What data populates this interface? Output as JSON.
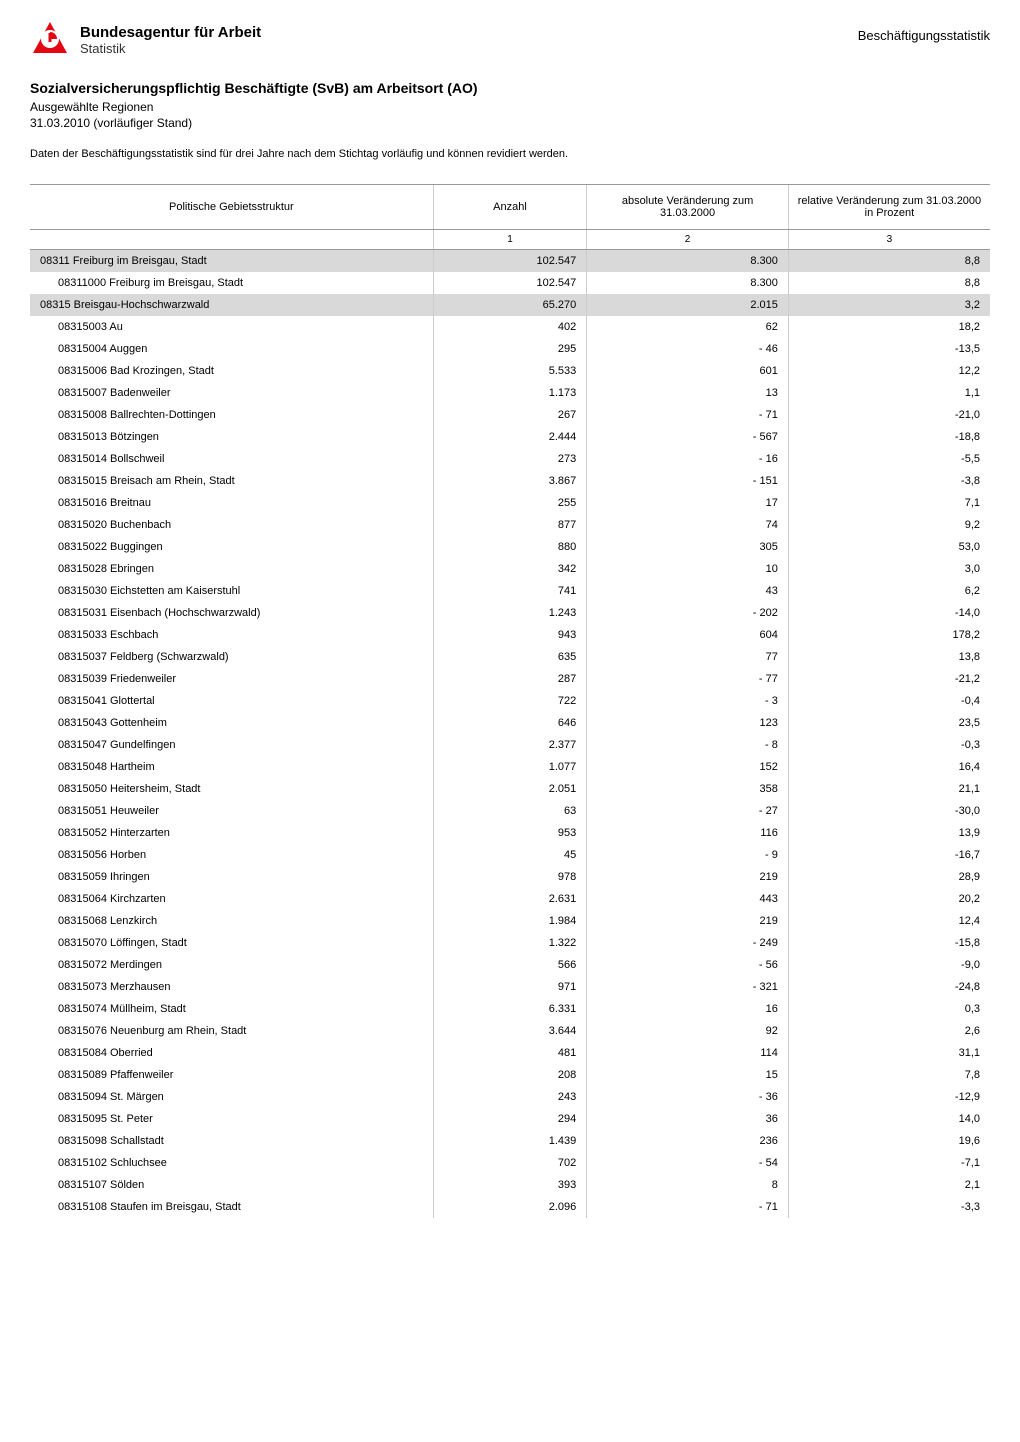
{
  "header": {
    "logo_title": "Bundesagentur für Arbeit",
    "logo_subtitle": "Statistik",
    "right_label": "Beschäftigungsstatistik"
  },
  "report": {
    "title": "Sozialversicherungspflichtig Beschäftigte (SvB) am Arbeitsort (AO)",
    "subtitle": "Ausgewählte Regionen",
    "date": "31.03.2010 (vorläufiger Stand)",
    "note": "Daten der Beschäftigungsstatistik sind für drei Jahre nach dem Stichtag vorläufig und können revidiert werden."
  },
  "table": {
    "columns": [
      {
        "label": "Politische Gebietsstruktur",
        "align": "left",
        "colnum": ""
      },
      {
        "label": "Anzahl",
        "align": "center",
        "colnum": "1"
      },
      {
        "label": "absolute Veränderung zum 31.03.2000",
        "align": "center",
        "colnum": "2"
      },
      {
        "label": "relative Veränderung zum 31.03.2000 in Prozent",
        "align": "center",
        "colnum": "3"
      }
    ],
    "rows": [
      {
        "level": 0,
        "name": "08311 Freiburg im Breisgau, Stadt",
        "anzahl": "102.547",
        "abs": "8.300",
        "rel": "8,8"
      },
      {
        "level": 1,
        "name": "08311000 Freiburg im Breisgau, Stadt",
        "anzahl": "102.547",
        "abs": "8.300",
        "rel": "8,8"
      },
      {
        "level": 0,
        "name": "08315 Breisgau-Hochschwarzwald",
        "anzahl": "65.270",
        "abs": "2.015",
        "rel": "3,2"
      },
      {
        "level": 1,
        "name": "08315003 Au",
        "anzahl": "402",
        "abs": "62",
        "rel": "18,2"
      },
      {
        "level": 1,
        "name": "08315004 Auggen",
        "anzahl": "295",
        "abs": "- 46",
        "rel": "-13,5"
      },
      {
        "level": 1,
        "name": "08315006 Bad Krozingen, Stadt",
        "anzahl": "5.533",
        "abs": "601",
        "rel": "12,2"
      },
      {
        "level": 1,
        "name": "08315007 Badenweiler",
        "anzahl": "1.173",
        "abs": "13",
        "rel": "1,1"
      },
      {
        "level": 1,
        "name": "08315008 Ballrechten-Dottingen",
        "anzahl": "267",
        "abs": "- 71",
        "rel": "-21,0"
      },
      {
        "level": 1,
        "name": "08315013 Bötzingen",
        "anzahl": "2.444",
        "abs": "- 567",
        "rel": "-18,8"
      },
      {
        "level": 1,
        "name": "08315014 Bollschweil",
        "anzahl": "273",
        "abs": "- 16",
        "rel": "-5,5"
      },
      {
        "level": 1,
        "name": "08315015 Breisach am Rhein, Stadt",
        "anzahl": "3.867",
        "abs": "- 151",
        "rel": "-3,8"
      },
      {
        "level": 1,
        "name": "08315016 Breitnau",
        "anzahl": "255",
        "abs": "17",
        "rel": "7,1"
      },
      {
        "level": 1,
        "name": "08315020 Buchenbach",
        "anzahl": "877",
        "abs": "74",
        "rel": "9,2"
      },
      {
        "level": 1,
        "name": "08315022 Buggingen",
        "anzahl": "880",
        "abs": "305",
        "rel": "53,0"
      },
      {
        "level": 1,
        "name": "08315028 Ebringen",
        "anzahl": "342",
        "abs": "10",
        "rel": "3,0"
      },
      {
        "level": 1,
        "name": "08315030 Eichstetten am Kaiserstuhl",
        "anzahl": "741",
        "abs": "43",
        "rel": "6,2"
      },
      {
        "level": 1,
        "name": "08315031 Eisenbach (Hochschwarzwald)",
        "anzahl": "1.243",
        "abs": "- 202",
        "rel": "-14,0"
      },
      {
        "level": 1,
        "name": "08315033 Eschbach",
        "anzahl": "943",
        "abs": "604",
        "rel": "178,2"
      },
      {
        "level": 1,
        "name": "08315037 Feldberg (Schwarzwald)",
        "anzahl": "635",
        "abs": "77",
        "rel": "13,8"
      },
      {
        "level": 1,
        "name": "08315039 Friedenweiler",
        "anzahl": "287",
        "abs": "- 77",
        "rel": "-21,2"
      },
      {
        "level": 1,
        "name": "08315041 Glottertal",
        "anzahl": "722",
        "abs": "- 3",
        "rel": "-0,4"
      },
      {
        "level": 1,
        "name": "08315043 Gottenheim",
        "anzahl": "646",
        "abs": "123",
        "rel": "23,5"
      },
      {
        "level": 1,
        "name": "08315047 Gundelfingen",
        "anzahl": "2.377",
        "abs": "- 8",
        "rel": "-0,3"
      },
      {
        "level": 1,
        "name": "08315048 Hartheim",
        "anzahl": "1.077",
        "abs": "152",
        "rel": "16,4"
      },
      {
        "level": 1,
        "name": "08315050 Heitersheim, Stadt",
        "anzahl": "2.051",
        "abs": "358",
        "rel": "21,1"
      },
      {
        "level": 1,
        "name": "08315051 Heuweiler",
        "anzahl": "63",
        "abs": "- 27",
        "rel": "-30,0"
      },
      {
        "level": 1,
        "name": "08315052 Hinterzarten",
        "anzahl": "953",
        "abs": "116",
        "rel": "13,9"
      },
      {
        "level": 1,
        "name": "08315056 Horben",
        "anzahl": "45",
        "abs": "- 9",
        "rel": "-16,7"
      },
      {
        "level": 1,
        "name": "08315059 Ihringen",
        "anzahl": "978",
        "abs": "219",
        "rel": "28,9"
      },
      {
        "level": 1,
        "name": "08315064 Kirchzarten",
        "anzahl": "2.631",
        "abs": "443",
        "rel": "20,2"
      },
      {
        "level": 1,
        "name": "08315068 Lenzkirch",
        "anzahl": "1.984",
        "abs": "219",
        "rel": "12,4"
      },
      {
        "level": 1,
        "name": "08315070 Löffingen, Stadt",
        "anzahl": "1.322",
        "abs": "- 249",
        "rel": "-15,8"
      },
      {
        "level": 1,
        "name": "08315072 Merdingen",
        "anzahl": "566",
        "abs": "- 56",
        "rel": "-9,0"
      },
      {
        "level": 1,
        "name": "08315073 Merzhausen",
        "anzahl": "971",
        "abs": "- 321",
        "rel": "-24,8"
      },
      {
        "level": 1,
        "name": "08315074 Müllheim, Stadt",
        "anzahl": "6.331",
        "abs": "16",
        "rel": "0,3"
      },
      {
        "level": 1,
        "name": "08315076 Neuenburg am Rhein, Stadt",
        "anzahl": "3.644",
        "abs": "92",
        "rel": "2,6"
      },
      {
        "level": 1,
        "name": "08315084 Oberried",
        "anzahl": "481",
        "abs": "114",
        "rel": "31,1"
      },
      {
        "level": 1,
        "name": "08315089 Pfaffenweiler",
        "anzahl": "208",
        "abs": "15",
        "rel": "7,8"
      },
      {
        "level": 1,
        "name": "08315094 St. Märgen",
        "anzahl": "243",
        "abs": "- 36",
        "rel": "-12,9"
      },
      {
        "level": 1,
        "name": "08315095 St. Peter",
        "anzahl": "294",
        "abs": "36",
        "rel": "14,0"
      },
      {
        "level": 1,
        "name": "08315098 Schallstadt",
        "anzahl": "1.439",
        "abs": "236",
        "rel": "19,6"
      },
      {
        "level": 1,
        "name": "08315102 Schluchsee",
        "anzahl": "702",
        "abs": "- 54",
        "rel": "-7,1"
      },
      {
        "level": 1,
        "name": "08315107 Sölden",
        "anzahl": "393",
        "abs": "8",
        "rel": "2,1"
      },
      {
        "level": 1,
        "name": "08315108 Staufen im Breisgau, Stadt",
        "anzahl": "2.096",
        "abs": "- 71",
        "rel": "-3,3"
      }
    ],
    "styling": {
      "level0_bg": "#d9d9d9",
      "border_color": "#999999",
      "sep_color": "#cccccc",
      "col_widths_pct": [
        42,
        16,
        21,
        21
      ]
    }
  }
}
